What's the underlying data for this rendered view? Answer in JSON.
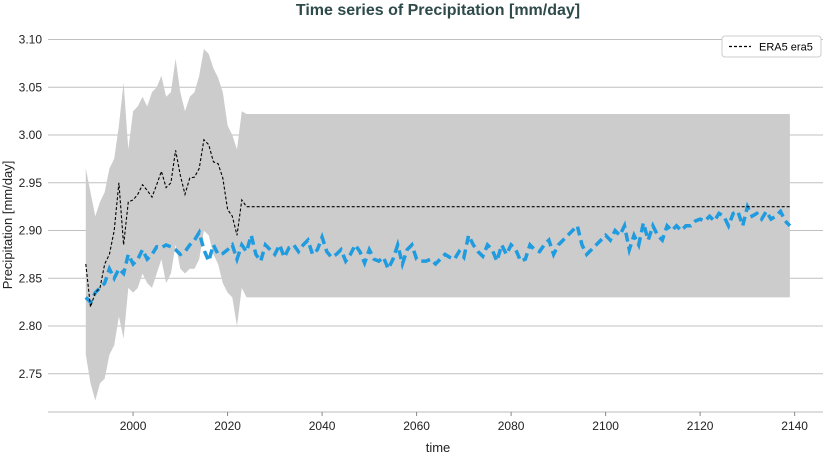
{
  "chart_data": {
    "type": "line",
    "title": "Time series of Precipitation [mm/day]",
    "xlabel": "time",
    "ylabel": "Precipitation [mm/day]",
    "xlim": [
      1982,
      2146
    ],
    "ylim": [
      2.71,
      3.11
    ],
    "xticks": [
      2000,
      2020,
      2040,
      2060,
      2080,
      2100,
      2120,
      2140
    ],
    "yticks": [
      2.75,
      2.8,
      2.85,
      2.9,
      2.95,
      3.0,
      3.05,
      3.1
    ],
    "grid": "horizontal",
    "legend_placement": "top-right",
    "colors": {
      "title": "#2e4a4a",
      "band": "#cccccc",
      "reference": "#000000",
      "model": "#1f9be0",
      "grid": "#c0c0c0"
    },
    "band": {
      "x_start": 1990,
      "upper": [
        2.965,
        2.94,
        2.915,
        2.93,
        2.94,
        2.965,
        2.975,
        3.01,
        3.055,
        2.985,
        3.025,
        3.03,
        3.04,
        3.03,
        3.045,
        3.05,
        3.062,
        3.04,
        3.045,
        3.08,
        3.045,
        3.025,
        3.04,
        3.045,
        3.062,
        3.09,
        3.085,
        3.07,
        3.06,
        3.045,
        3.01,
        3.0,
        2.985,
        3.025,
        3.022
      ],
      "lower": [
        2.77,
        2.74,
        2.722,
        2.74,
        2.745,
        2.77,
        2.78,
        2.81,
        2.787,
        2.84,
        2.835,
        2.84,
        2.855,
        2.845,
        2.84,
        2.855,
        2.87,
        2.845,
        2.855,
        2.885,
        2.86,
        2.855,
        2.86,
        2.86,
        2.87,
        2.9,
        2.895,
        2.875,
        2.865,
        2.845,
        2.835,
        2.83,
        2.8,
        2.84,
        2.83
      ],
      "constant_until": 2139,
      "constant_upper": 3.022,
      "constant_lower": 2.83
    },
    "series": [
      {
        "name": "ERA5 era5",
        "x_start": 1990,
        "values": [
          2.865,
          2.82,
          2.835,
          2.84,
          2.865,
          2.875,
          2.9,
          2.95,
          2.885,
          2.93,
          2.932,
          2.938,
          2.948,
          2.942,
          2.935,
          2.948,
          2.962,
          2.945,
          2.95,
          2.984,
          2.958,
          2.938,
          2.955,
          2.956,
          2.965,
          2.995,
          2.99,
          2.972,
          2.97,
          2.955,
          2.922,
          2.915,
          2.895,
          2.932,
          2.925
        ],
        "constant_until": 2139,
        "constant_value": 2.925
      },
      {
        "x_start": 1990,
        "values": [
          2.83,
          2.825,
          2.835,
          2.84,
          2.845,
          2.86,
          2.85,
          2.86,
          2.855,
          2.875,
          2.865,
          2.87,
          2.88,
          2.87,
          2.875,
          2.883,
          2.882,
          2.885,
          2.883,
          2.88,
          2.875,
          2.878,
          2.885,
          2.89,
          2.898,
          2.88,
          2.868,
          2.885,
          2.875,
          2.876,
          2.88,
          2.885,
          2.87,
          2.885,
          2.878,
          2.895,
          2.875,
          2.868,
          2.885,
          2.88,
          2.875,
          2.885,
          2.872,
          2.882,
          2.885,
          2.878,
          2.885,
          2.89,
          2.875,
          2.88,
          2.893,
          2.878,
          2.872,
          2.875,
          2.88,
          2.868,
          2.875,
          2.885,
          2.878,
          2.866,
          2.88,
          2.87,
          2.868,
          2.872,
          2.86,
          2.87,
          2.885,
          2.865,
          2.88,
          2.885,
          2.87,
          2.868,
          2.868,
          2.87,
          2.865,
          2.87,
          2.875,
          2.872,
          2.87,
          2.878,
          2.872,
          2.895,
          2.885,
          2.878,
          2.873,
          2.885,
          2.88,
          2.868,
          2.885,
          2.875,
          2.885,
          2.88,
          2.868,
          2.87,
          2.885,
          2.88,
          2.878,
          2.885,
          2.89,
          2.875,
          2.885,
          2.89,
          2.895,
          2.9,
          2.905,
          2.885,
          2.875,
          2.88,
          2.885,
          2.89,
          2.895,
          2.89,
          2.9,
          2.895,
          2.905,
          2.88,
          2.895,
          2.885,
          2.908,
          2.89,
          2.905,
          2.895,
          2.89,
          2.905,
          2.9,
          2.905,
          2.9,
          2.905,
          2.905,
          2.91,
          2.912,
          2.91,
          2.915,
          2.91,
          2.918,
          2.915,
          2.905,
          2.918,
          2.92,
          2.905,
          2.925,
          2.915,
          2.918,
          2.912,
          2.92,
          2.912,
          2.915,
          2.92,
          2.91,
          2.905
        ]
      }
    ]
  }
}
